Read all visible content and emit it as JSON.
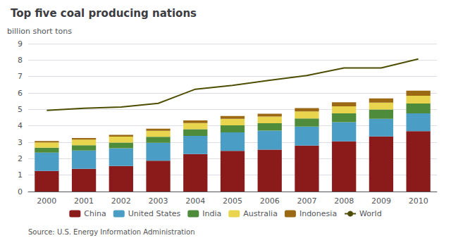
{
  "chart_data": {
    "type": "bar",
    "stacked": true,
    "title": "Top five coal producing nations",
    "ylabel": "billion short tons",
    "annotations": [
      "Source: U.S. Energy Information Administration"
    ],
    "categories": [
      "2000",
      "2001",
      "2002",
      "2003",
      "2004",
      "2005",
      "2006",
      "2007",
      "2008",
      "2009",
      "2010"
    ],
    "series": [
      {
        "name": "China",
        "type": "bar",
        "color": "#8B1A1A",
        "values": [
          1.25,
          1.38,
          1.55,
          1.88,
          2.28,
          2.47,
          2.55,
          2.8,
          3.05,
          3.35,
          3.68
        ]
      },
      {
        "name": "United States",
        "type": "bar",
        "color": "#4A9DC4",
        "values": [
          1.12,
          1.12,
          1.09,
          1.09,
          1.11,
          1.13,
          1.16,
          1.15,
          1.17,
          1.07,
          1.08
        ]
      },
      {
        "name": "India",
        "type": "bar",
        "color": "#4E8B3A",
        "values": [
          0.3,
          0.32,
          0.34,
          0.36,
          0.4,
          0.43,
          0.45,
          0.5,
          0.54,
          0.57,
          0.6
        ]
      },
      {
        "name": "Australia",
        "type": "bar",
        "color": "#E8D44D",
        "values": [
          0.32,
          0.34,
          0.36,
          0.37,
          0.38,
          0.4,
          0.4,
          0.43,
          0.43,
          0.42,
          0.47
        ]
      },
      {
        "name": "Indonesia",
        "type": "bar",
        "color": "#9B6914",
        "values": [
          0.08,
          0.1,
          0.11,
          0.12,
          0.16,
          0.17,
          0.18,
          0.2,
          0.24,
          0.26,
          0.31
        ]
      },
      {
        "name": "World",
        "type": "line",
        "color": "#4D4D00",
        "values": [
          4.94,
          5.07,
          5.14,
          5.37,
          6.23,
          6.46,
          6.77,
          7.06,
          7.52,
          7.52,
          8.07
        ]
      }
    ],
    "ylim": [
      0,
      9
    ],
    "yticks": [
      0,
      1,
      2,
      3,
      4,
      5,
      6,
      7,
      8,
      9
    ],
    "grid": true,
    "legend": "bottom"
  }
}
